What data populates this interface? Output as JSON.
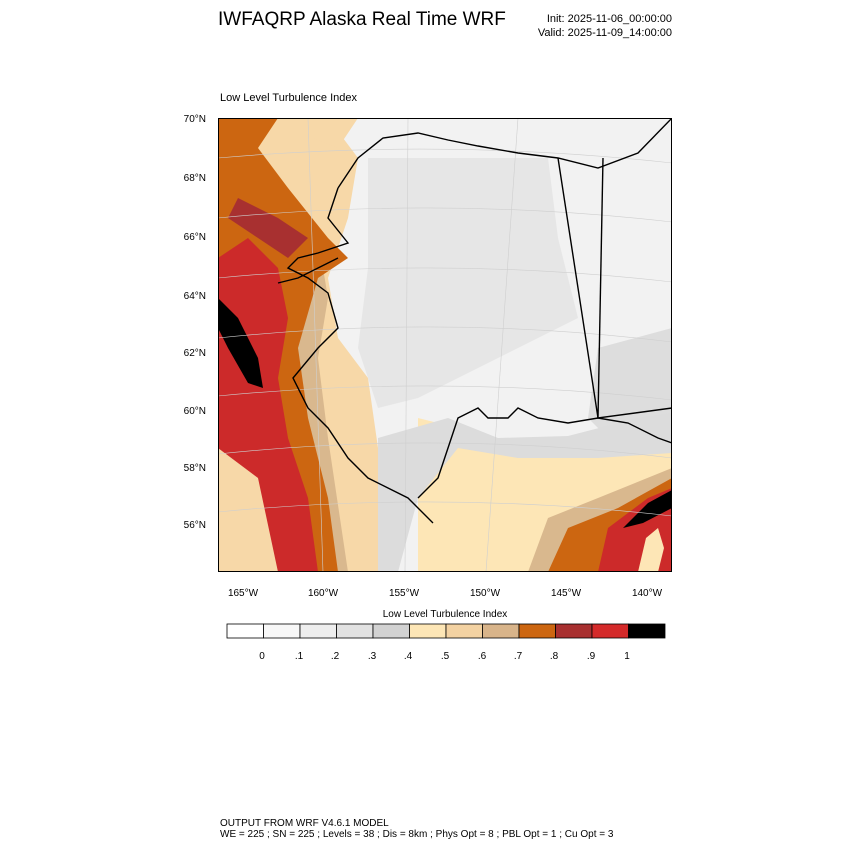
{
  "header": {
    "title": "IWFAQRP Alaska Real Time WRF",
    "init": "Init: 2025-11-06_00:00:00",
    "valid": "Valid: 2025-11-09_14:00:00"
  },
  "map": {
    "subtitle": "Low Level Turbulence Index",
    "lat_labels": [
      "70°N",
      "68°N",
      "66°N",
      "64°N",
      "62°N",
      "60°N",
      "58°N",
      "56°N"
    ],
    "lon_labels": [
      "165°W",
      "160°W",
      "155°W",
      "150°W",
      "145°W",
      "140°W"
    ],
    "region": "Alaska",
    "field_colors": {
      "land_low": "#f0f0f0",
      "land_mid": "#e2e2e2",
      "tan_light": "#fde6b6",
      "tan": "#f7d8a8",
      "tan_dark": "#d9b88e",
      "orange": "#cc6611",
      "brown_red": "#a83030",
      "red": "#cc2a2a",
      "black": "#000000"
    }
  },
  "colorbar": {
    "title": "Low Level Turbulence Index",
    "labels": [
      "0",
      ".1",
      ".2",
      ".3",
      ".4",
      ".5",
      ".6",
      ".7",
      ".8",
      ".9",
      "1"
    ],
    "colors": [
      "#ffffff",
      "#f7f7f7",
      "#eeeeee",
      "#e2e2e2",
      "#d2d2d2",
      "#fde6b6",
      "#f3d2a2",
      "#d8b48a",
      "#cc6611",
      "#a83030",
      "#d42a2a",
      "#000000"
    ]
  },
  "footer": {
    "line1": "OUTPUT FROM WRF V4.6.1 MODEL",
    "line2": "WE = 225 ; SN = 225 ; Levels = 38 ; Dis = 8km ; Phys Opt = 8 ; PBL Opt = 1 ; Cu Opt = 3"
  }
}
